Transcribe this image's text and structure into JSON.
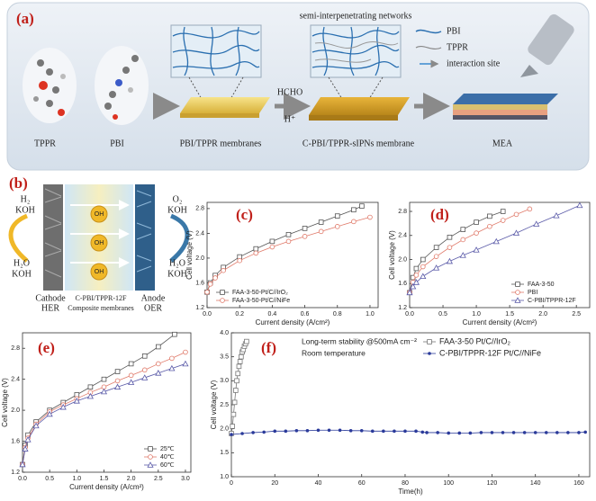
{
  "panel_a": {
    "label": "(a)",
    "tppr": "TPPR",
    "pbi": "PBI",
    "membrane1": "PBI/TPPR membranes",
    "reagent": "HCHO",
    "proton": "H⁺",
    "network_title": "semi-interpenetrating networks",
    "membrane2": "C-PBI/TPPR-sIPNs membrane",
    "mea": "MEA",
    "legend": [
      "PBI",
      "TPPR",
      "interaction site"
    ]
  },
  "panel_b": {
    "label": "(b)",
    "left_top": [
      "H₂",
      "KOH"
    ],
    "left_bottom": [
      "H₂O",
      "KOH"
    ],
    "right_top": [
      "O₂",
      "KOH"
    ],
    "right_bottom": [
      "H₂O",
      "KOH"
    ],
    "ion": "OH",
    "cathode": [
      "Cathode",
      "HER"
    ],
    "membrane": [
      "C-PBI/TPPR-12F",
      "Composite membranes"
    ],
    "anode": [
      "Anode",
      "OER"
    ]
  },
  "chart_data": [
    {
      "type": "line",
      "label": "(c)",
      "xlabel": "Current density (A/cm²)",
      "ylabel": "Cell voltage (V)",
      "xlim": [
        0,
        1.05
      ],
      "xticks": [
        {
          "value": 0,
          "label": "0.0"
        },
        0.2,
        0.4,
        0.6,
        0.8,
        {
          "value": 1,
          "label": "1.0"
        }
      ],
      "ylim": [
        1.2,
        2.9
      ],
      "yticks": [
        1.2,
        1.6,
        {
          "value": 2,
          "label": "2.0"
        },
        2.4,
        2.8
      ],
      "legend": "lower right",
      "series": [
        {
          "name": "FAA-3-50-Pt/C//IrO₂",
          "color": "#555555",
          "marker": "square",
          "x": [
            0,
            0.02,
            0.05,
            0.1,
            0.2,
            0.3,
            0.4,
            0.5,
            0.6,
            0.7,
            0.8,
            0.9,
            0.95
          ],
          "values": [
            1.45,
            1.6,
            1.72,
            1.85,
            2.02,
            2.15,
            2.27,
            2.38,
            2.48,
            2.58,
            2.68,
            2.78,
            2.84
          ]
        },
        {
          "name": "FAA-3-50-Pt/C//NiFe",
          "color": "#e07a6a",
          "marker": "circle",
          "x": [
            0,
            0.02,
            0.05,
            0.1,
            0.2,
            0.3,
            0.4,
            0.5,
            0.6,
            0.7,
            0.8,
            0.9,
            1.0
          ],
          "values": [
            1.45,
            1.58,
            1.68,
            1.8,
            1.96,
            2.08,
            2.18,
            2.27,
            2.35,
            2.43,
            2.51,
            2.59,
            2.66
          ]
        }
      ]
    },
    {
      "type": "line",
      "label": "(d)",
      "xlabel": "Current density (A/cm²)",
      "ylabel": "Cell voltage (V)",
      "xlim": [
        0,
        2.7
      ],
      "xticks": [
        {
          "value": 0,
          "label": "0.0"
        },
        0.5,
        {
          "value": 1,
          "label": "1.0"
        },
        1.5,
        {
          "value": 2,
          "label": "2.0"
        },
        2.5
      ],
      "ylim": [
        1.2,
        2.95
      ],
      "yticks": [
        1.2,
        1.6,
        {
          "value": 2,
          "label": "2.0"
        },
        2.4,
        2.8
      ],
      "legend": "lower right",
      "series": [
        {
          "name": "FAA-3-50",
          "color": "#555555",
          "marker": "square",
          "x": [
            0,
            0.05,
            0.1,
            0.2,
            0.4,
            0.6,
            0.8,
            1.0,
            1.2,
            1.4
          ],
          "values": [
            1.45,
            1.7,
            1.85,
            2.0,
            2.2,
            2.37,
            2.5,
            2.62,
            2.72,
            2.8
          ]
        },
        {
          "name": "PBI",
          "color": "#e07a6a",
          "marker": "circle",
          "x": [
            0,
            0.05,
            0.1,
            0.2,
            0.4,
            0.6,
            0.8,
            1.0,
            1.2,
            1.4,
            1.6,
            1.8
          ],
          "values": [
            1.45,
            1.62,
            1.74,
            1.88,
            2.05,
            2.2,
            2.33,
            2.44,
            2.55,
            2.65,
            2.75,
            2.84
          ]
        },
        {
          "name": "C-PBI/TPPR-12F",
          "color": "#5a5aa8",
          "marker": "triangle",
          "x": [
            0,
            0.05,
            0.1,
            0.2,
            0.4,
            0.6,
            0.8,
            1.0,
            1.3,
            1.6,
            1.9,
            2.2,
            2.55
          ],
          "values": [
            1.45,
            1.55,
            1.62,
            1.72,
            1.86,
            1.97,
            2.07,
            2.16,
            2.3,
            2.44,
            2.59,
            2.73,
            2.9
          ]
        }
      ]
    },
    {
      "type": "line",
      "label": "(e)",
      "xlabel": "Current density (A/cm²)",
      "ylabel": "Cell voltage (V)",
      "xlim": [
        0,
        3.1
      ],
      "xticks": [
        {
          "value": 0,
          "label": "0.0"
        },
        0.5,
        {
          "value": 1,
          "label": "1.0"
        },
        1.5,
        {
          "value": 2,
          "label": "2.0"
        },
        2.5,
        {
          "value": 3,
          "label": "3.0"
        }
      ],
      "ylim": [
        1.2,
        3.0
      ],
      "yticks": [
        1.2,
        1.6,
        {
          "value": 2,
          "label": "2.0"
        },
        2.4,
        2.8
      ],
      "legend": "lower right",
      "series": [
        {
          "name": "25℃",
          "color": "#555555",
          "marker": "square",
          "x": [
            0,
            0.05,
            0.1,
            0.25,
            0.5,
            0.75,
            1.0,
            1.25,
            1.5,
            1.75,
            2.0,
            2.25,
            2.5,
            2.8
          ],
          "values": [
            1.3,
            1.55,
            1.68,
            1.85,
            2.0,
            2.1,
            2.2,
            2.3,
            2.4,
            2.5,
            2.6,
            2.7,
            2.82,
            2.98
          ]
        },
        {
          "name": "40℃",
          "color": "#e07a6a",
          "marker": "circle",
          "x": [
            0,
            0.05,
            0.1,
            0.25,
            0.5,
            0.75,
            1.0,
            1.25,
            1.5,
            1.75,
            2.0,
            2.25,
            2.5,
            2.75,
            3.0
          ],
          "values": [
            1.3,
            1.52,
            1.64,
            1.82,
            1.98,
            2.07,
            2.15,
            2.23,
            2.3,
            2.38,
            2.45,
            2.52,
            2.6,
            2.67,
            2.75
          ]
        },
        {
          "name": "60℃",
          "color": "#5a5aa8",
          "marker": "triangle",
          "x": [
            0,
            0.05,
            0.1,
            0.25,
            0.5,
            0.75,
            1.0,
            1.25,
            1.5,
            1.75,
            2.0,
            2.25,
            2.5,
            2.75,
            3.0
          ],
          "values": [
            1.3,
            1.5,
            1.62,
            1.8,
            1.95,
            2.04,
            2.12,
            2.18,
            2.24,
            2.3,
            2.36,
            2.42,
            2.48,
            2.54,
            2.6
          ]
        }
      ]
    },
    {
      "type": "line",
      "label": "(f)",
      "xlabel": "Time(h)",
      "ylabel": "Cell voltage (V)",
      "annotations": [
        "Long-term stability @500mA cm⁻²",
        "Room temperature"
      ],
      "xlim": [
        0,
        165
      ],
      "xticks": [
        0,
        20,
        40,
        60,
        80,
        100,
        120,
        140,
        160
      ],
      "ylim": [
        1.0,
        4.0
      ],
      "yticks": [
        {
          "value": 1,
          "label": "1.0"
        },
        1.5,
        {
          "value": 2,
          "label": "2.0"
        },
        2.5,
        {
          "value": 3,
          "label": "3.0"
        },
        3.5,
        {
          "value": 4,
          "label": "4.0"
        }
      ],
      "legend": "upper right",
      "series": [
        {
          "name": "FAA-3-50 Pt/C//IrO₂",
          "color": "#777777",
          "marker": "square",
          "x": [
            0,
            0.5,
            1,
            1.5,
            2,
            2.5,
            3,
            3.5,
            4,
            4.5,
            5,
            5.5,
            6,
            6.5,
            7
          ],
          "values": [
            1.9,
            2.05,
            2.3,
            2.55,
            2.8,
            3.0,
            3.15,
            3.3,
            3.4,
            3.5,
            3.6,
            3.65,
            3.72,
            3.77,
            3.82
          ]
        },
        {
          "name": "C-PBI/TPPR-12F Pt/C//NiFe",
          "color": "#2a3a9a",
          "marker": "dot",
          "x": [
            0,
            5,
            10,
            15,
            20,
            25,
            30,
            35,
            40,
            45,
            50,
            55,
            60,
            65,
            70,
            75,
            80,
            85,
            88,
            90,
            95,
            100,
            105,
            110,
            115,
            120,
            125,
            130,
            135,
            140,
            145,
            150,
            155,
            160,
            163
          ],
          "values": [
            1.88,
            1.9,
            1.92,
            1.93,
            1.95,
            1.95,
            1.96,
            1.96,
            1.97,
            1.97,
            1.97,
            1.96,
            1.96,
            1.95,
            1.95,
            1.95,
            1.95,
            1.95,
            1.93,
            1.92,
            1.92,
            1.91,
            1.91,
            1.91,
            1.92,
            1.92,
            1.92,
            1.92,
            1.92,
            1.92,
            1.92,
            1.92,
            1.92,
            1.92,
            1.93
          ]
        }
      ]
    }
  ]
}
